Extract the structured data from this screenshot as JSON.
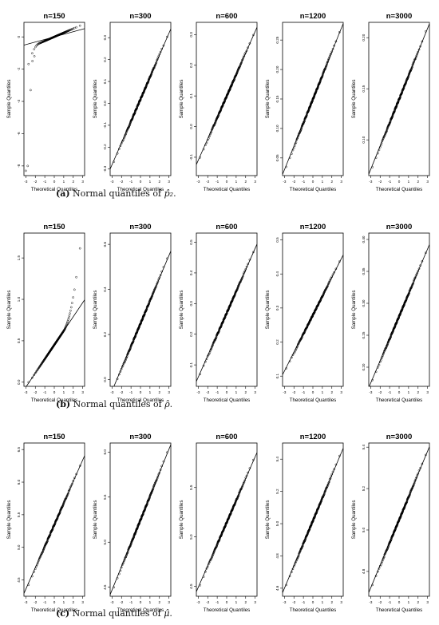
{
  "figure": {
    "rows": [
      {
        "caption_label": "(a)",
        "caption_text": " Normal quantiles of ",
        "caption_symbol": "p̂₂",
        "caption_end": ".",
        "panels": [
          {
            "title": "n=150",
            "xlabel": "Theoretical Quantiles",
            "ylabel": "Sample Quantiles",
            "xticks": [
              "-3",
              "-2",
              "-1",
              "0",
              "1",
              "2",
              "3"
            ],
            "yticks": [
              "0",
              "-2",
              "-4",
              "-6",
              "-8"
            ],
            "ylim": [
              -8.6,
              0.9
            ]
          },
          {
            "title": "n=300",
            "xlabel": "Theoretical Quantiles",
            "ylabel": "Sample Quantiles",
            "xticks": [
              "-3",
              "-2",
              "-1",
              "0",
              "1",
              "2",
              "3"
            ],
            "yticks": [
              "0.3",
              "0.2",
              "0.1",
              "0.0",
              "-0.1",
              "-0.2",
              "-0.3"
            ],
            "ylim": [
              -0.33,
              0.37
            ]
          },
          {
            "title": "n=600",
            "xlabel": "Theoretical Quantiles",
            "ylabel": "Sample Quantiles",
            "xticks": [
              "-3",
              "-2",
              "-1",
              "0",
              "1",
              "2",
              "3"
            ],
            "yticks": [
              "0.3",
              "0.2",
              "0.1",
              "0.0",
              "-0.1"
            ],
            "ylim": [
              -0.16,
              0.34
            ]
          },
          {
            "title": "n=1200",
            "xlabel": "Theoretical Quantiles",
            "ylabel": "Sample Quantiles",
            "xticks": [
              "-3",
              "-2",
              "-1",
              "0",
              "1",
              "2",
              "3"
            ],
            "yticks": [
              "0.25",
              "0.20",
              "0.15",
              "0.10",
              "0.05"
            ],
            "ylim": [
              0.02,
              0.28
            ]
          },
          {
            "title": "n=3000",
            "xlabel": "Theoretical Quantiles",
            "ylabel": "Sample Quantiles",
            "xticks": [
              "-3",
              "-2",
              "-1",
              "0",
              "1",
              "2",
              "3"
            ],
            "yticks": [
              "0.20",
              "0.15",
              "0.10"
            ],
            "ylim": [
              0.065,
              0.215
            ]
          }
        ]
      },
      {
        "caption_label": "(b)",
        "caption_text": " Normal quantiles of ",
        "caption_symbol": "ρ̂",
        "caption_end": ".",
        "panels": [
          {
            "title": "n=150",
            "xlabel": "Theoretical Quantiles",
            "ylabel": "Sample Quantiles",
            "xticks": [
              "-3",
              "-2",
              "-1",
              "0",
              "1",
              "2",
              "3"
            ],
            "yticks": [
              "1.5",
              "1.0",
              "0.5",
              "0.0"
            ],
            "ylim": [
              -0.05,
              1.8
            ]
          },
          {
            "title": "n=300",
            "xlabel": "Theoretical Quantiles",
            "ylabel": "Sample Quantiles",
            "xticks": [
              "-3",
              "-2",
              "-1",
              "0",
              "1",
              "2",
              "3"
            ],
            "yticks": [
              "0.6",
              "0.4",
              "0.2",
              "0.0"
            ],
            "ylim": [
              -0.03,
              0.65
            ]
          },
          {
            "title": "n=600",
            "xlabel": "Theoretical Quantiles",
            "ylabel": "Sample Quantiles",
            "xticks": [
              "-3",
              "-2",
              "-1",
              "0",
              "1",
              "2",
              "3"
            ],
            "yticks": [
              "0.5",
              "0.4",
              "0.3",
              "0.2",
              "0.1"
            ],
            "ylim": [
              0.03,
              0.53
            ]
          },
          {
            "title": "n=1200",
            "xlabel": "Theoretical Quantiles",
            "ylabel": "Sample Quantiles",
            "xticks": [
              "-3",
              "-2",
              "-1",
              "0",
              "1",
              "2",
              "3"
            ],
            "yticks": [
              "0.5",
              "0.4",
              "0.3",
              "0.2",
              "0.1"
            ],
            "ylim": [
              0.07,
              0.52
            ]
          },
          {
            "title": "n=3000",
            "xlabel": "Theoretical Quantiles",
            "ylabel": "Sample Quantiles",
            "xticks": [
              "-3",
              "-2",
              "-1",
              "0",
              "1",
              "2",
              "3"
            ],
            "yticks": [
              "0.40",
              "0.35",
              "0.30",
              "0.25",
              "0.20"
            ],
            "ylim": [
              0.17,
              0.41
            ]
          }
        ]
      },
      {
        "caption_label": "(c)",
        "caption_text": " Normal quantiles of ",
        "caption_symbol": "μ̂",
        "caption_end": ".",
        "panels": [
          {
            "title": "n=150",
            "xlabel": "Theoretical Quantiles",
            "ylabel": "Sample Quantiles",
            "xticks": [
              "-3",
              "-2",
              "-1",
              "0",
              "1",
              "2",
              "3"
            ],
            "yticks": [
              "6.5",
              "6.0",
              "5.5",
              "5.0",
              "4.5"
            ],
            "ylim": [
              4.25,
              6.6
            ]
          },
          {
            "title": "n=300",
            "xlabel": "Theoretical Quantiles",
            "ylabel": "Sample Quantiles",
            "xticks": [
              "-3",
              "-2",
              "-1",
              "0",
              "1",
              "2",
              "3"
            ],
            "yticks": [
              "6.0",
              "5.5",
              "5.0",
              "4.5"
            ],
            "ylim": [
              4.4,
              6.1
            ]
          },
          {
            "title": "n=600",
            "xlabel": "Theoretical Quantiles",
            "ylabel": "Sample Quantiles",
            "xticks": [
              "-3",
              "-2",
              "-1",
              "0",
              "1",
              "2",
              "3"
            ],
            "yticks": [
              "5.5",
              "5.0",
              "4.5"
            ],
            "ylim": [
              4.4,
              5.95
            ]
          },
          {
            "title": "n=1200",
            "xlabel": "Theoretical Quantiles",
            "ylabel": "Sample Quantiles",
            "xticks": [
              "-3",
              "-2",
              "-1",
              "0",
              "1",
              "2",
              "3"
            ],
            "yticks": [
              "5.4",
              "5.2",
              "5.0",
              "4.8",
              "4.6"
            ],
            "ylim": [
              4.55,
              5.5
            ]
          },
          {
            "title": "n=3000",
            "xlabel": "Theoretical Quantiles",
            "ylabel": "Sample Quantiles",
            "xticks": [
              "-3",
              "-2",
              "-1",
              "0",
              "1",
              "2",
              "3"
            ],
            "yticks": [
              "5.4",
              "5.2",
              "5.0",
              "4.8"
            ],
            "ylim": [
              4.68,
              5.42
            ]
          }
        ]
      }
    ]
  },
  "chart_data": [
    {
      "type": "scatter",
      "title": "n=150",
      "xlabel": "Theoretical Quantiles",
      "ylabel": "Sample Quantiles",
      "xlim": [
        -3.2,
        3.2
      ],
      "ylim": [
        -8.6,
        0.9
      ],
      "shape": "left-heavy tail",
      "reference_line": {
        "slope": 0.16,
        "intercept": 0.0
      },
      "points": 150,
      "tail_points": [
        [
          -3.0,
          -8.3
        ],
        [
          -2.8,
          -8.0
        ],
        [
          -2.5,
          -3.3
        ],
        [
          -2.3,
          -1.5
        ],
        [
          -2.1,
          -1.2
        ]
      ]
    },
    {
      "type": "scatter",
      "title": "n=300",
      "xlabel": "Theoretical Quantiles",
      "ylabel": "Sample Quantiles",
      "xlim": [
        -3.2,
        3.2
      ],
      "ylim": [
        -0.33,
        0.37
      ],
      "reference_line": {
        "slope": 0.1,
        "intercept": 0.02
      },
      "points": 300
    },
    {
      "type": "scatter",
      "title": "n=600",
      "xlabel": "Theoretical Quantiles",
      "ylabel": "Sample Quantiles",
      "xlim": [
        -3.2,
        3.2
      ],
      "ylim": [
        -0.16,
        0.34
      ],
      "reference_line": {
        "slope": 0.07,
        "intercept": 0.1
      },
      "points": 600
    },
    {
      "type": "scatter",
      "title": "n=1200",
      "xlabel": "Theoretical Quantiles",
      "ylabel": "Sample Quantiles",
      "xlim": [
        -3.2,
        3.2
      ],
      "ylim": [
        0.02,
        0.28
      ],
      "reference_line": {
        "slope": 0.04,
        "intercept": 0.15
      },
      "points": 1200
    },
    {
      "type": "scatter",
      "title": "n=3000",
      "xlabel": "Theoretical Quantiles",
      "ylabel": "Sample Quantiles",
      "xlim": [
        -3.2,
        3.2
      ],
      "ylim": [
        0.065,
        0.215
      ],
      "reference_line": {
        "slope": 0.023,
        "intercept": 0.14
      },
      "points": 3000
    },
    {
      "type": "scatter",
      "title": "n=150",
      "xlabel": "Theoretical Quantiles",
      "ylabel": "Sample Quantiles",
      "xlim": [
        -3.2,
        3.2
      ],
      "ylim": [
        -0.05,
        1.8
      ],
      "shape": "floor at 0, right tail",
      "reference_line": {
        "slope": 0.17,
        "intercept": 0.45
      },
      "points": 150
    },
    {
      "type": "scatter",
      "title": "n=300",
      "xlabel": "Theoretical Quantiles",
      "ylabel": "Sample Quantiles",
      "xlim": [
        -3.2,
        3.2
      ],
      "ylim": [
        -0.03,
        0.65
      ],
      "reference_line": {
        "slope": 0.1,
        "intercept": 0.25
      },
      "points": 300
    },
    {
      "type": "scatter",
      "title": "n=600",
      "xlabel": "Theoretical Quantiles",
      "ylabel": "Sample Quantiles",
      "xlim": [
        -3.2,
        3.2
      ],
      "ylim": [
        0.03,
        0.53
      ],
      "reference_line": {
        "slope": 0.07,
        "intercept": 0.27
      },
      "points": 600
    },
    {
      "type": "scatter",
      "title": "n=1200",
      "xlabel": "Theoretical Quantiles",
      "ylabel": "Sample Quantiles",
      "xlim": [
        -3.2,
        3.2
      ],
      "ylim": [
        0.07,
        0.52
      ],
      "reference_line": {
        "slope": 0.055,
        "intercept": 0.28
      },
      "points": 1200
    },
    {
      "type": "scatter",
      "title": "n=3000",
      "xlabel": "Theoretical Quantiles",
      "ylabel": "Sample Quantiles",
      "xlim": [
        -3.2,
        3.2
      ],
      "ylim": [
        0.17,
        0.41
      ],
      "reference_line": {
        "slope": 0.035,
        "intercept": 0.28
      },
      "points": 3000
    },
    {
      "type": "scatter",
      "title": "n=150",
      "xlabel": "Theoretical Quantiles",
      "ylabel": "Sample Quantiles",
      "xlim": [
        -3.2,
        3.2
      ],
      "ylim": [
        4.25,
        6.6
      ],
      "reference_line": {
        "slope": 0.33,
        "intercept": 5.35
      },
      "points": 150
    },
    {
      "type": "scatter",
      "title": "n=300",
      "xlabel": "Theoretical Quantiles",
      "ylabel": "Sample Quantiles",
      "xlim": [
        -3.2,
        3.2
      ],
      "ylim": [
        4.4,
        6.1
      ],
      "reference_line": {
        "slope": 0.26,
        "intercept": 5.25
      },
      "points": 300
    },
    {
      "type": "scatter",
      "title": "n=600",
      "xlabel": "Theoretical Quantiles",
      "ylabel": "Sample Quantiles",
      "xlim": [
        -3.2,
        3.2
      ],
      "ylim": [
        4.4,
        5.95
      ],
      "reference_line": {
        "slope": 0.22,
        "intercept": 5.15
      },
      "points": 600
    },
    {
      "type": "scatter",
      "title": "n=1200",
      "xlabel": "Theoretical Quantiles",
      "ylabel": "Sample Quantiles",
      "xlim": [
        -3.2,
        3.2
      ],
      "ylim": [
        4.55,
        5.5
      ],
      "reference_line": {
        "slope": 0.14,
        "intercept": 5.02
      },
      "points": 1200
    },
    {
      "type": "scatter",
      "title": "n=3000",
      "xlabel": "Theoretical Quantiles",
      "ylabel": "Sample Quantiles",
      "xlim": [
        -3.2,
        3.2
      ],
      "ylim": [
        4.68,
        5.42
      ],
      "reference_line": {
        "slope": 0.11,
        "intercept": 5.05
      },
      "points": 3000
    }
  ]
}
